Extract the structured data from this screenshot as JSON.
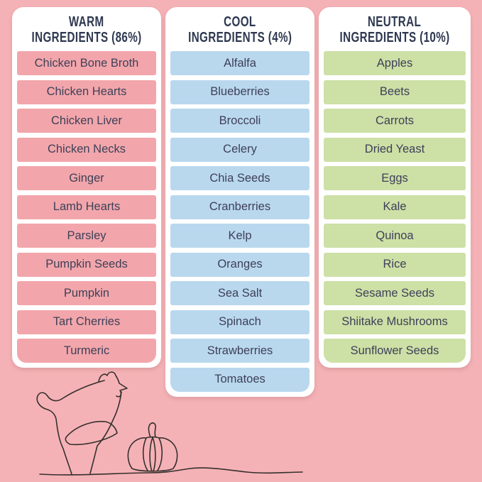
{
  "page": {
    "background_color": "#f5b2b6",
    "card_background": "#ffffff",
    "header_text_color": "#2e3850",
    "item_text_color": "#3e4058"
  },
  "columns": [
    {
      "id": "warm",
      "title_line1": "WARM",
      "title_line2": "INGREDIENTS (86%)",
      "row_color": "#f2a6ab",
      "items": [
        "Chicken Bone Broth",
        "Chicken Hearts",
        "Chicken Liver",
        "Chicken Necks",
        "Ginger",
        "Lamb Hearts",
        "Parsley",
        "Pumpkin Seeds",
        "Pumpkin",
        "Tart Cherries",
        "Turmeric"
      ]
    },
    {
      "id": "cool",
      "title_line1": "COOL",
      "title_line2": "INGREDIENTS (4%)",
      "row_color": "#b9d8ee",
      "items": [
        "Alfalfa",
        "Blueberries",
        "Broccoli",
        "Celery",
        "Chia Seeds",
        "Cranberries",
        "Kelp",
        "Oranges",
        "Sea Salt",
        "Spinach",
        "Strawberries",
        "Tomatoes"
      ]
    },
    {
      "id": "neutral",
      "title_line1": "NEUTRAL",
      "title_line2": "INGREDIENTS (10%)",
      "row_color": "#cde0a6",
      "items": [
        "Apples",
        "Beets",
        "Carrots",
        "Dried Yeast",
        "Eggs",
        "Kale",
        "Quinoa",
        "Rice",
        "Sesame Seeds",
        "Shiitake Mushrooms",
        "Sunflower Seeds"
      ]
    }
  ],
  "illustration": {
    "description": "continuous single-line drawing of a chicken and a pumpkin on a ground line",
    "stroke": "#35302e"
  }
}
